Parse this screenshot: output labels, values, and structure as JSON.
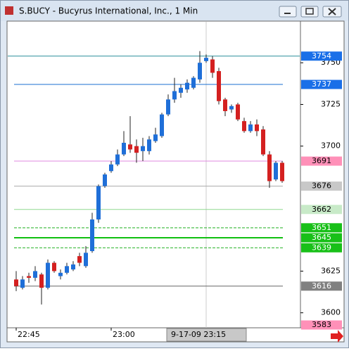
{
  "window": {
    "title": "S.BUCY - Bucyrus International, Inc., 1 Min"
  },
  "chart_data": {
    "type": "candlestick",
    "categories": [
      "22:45",
      null,
      null,
      null,
      null,
      null,
      null,
      null,
      null,
      null,
      null,
      null,
      null,
      null,
      null,
      "23:00",
      null,
      null,
      null,
      null,
      null,
      null,
      null,
      null,
      null,
      null,
      null,
      null,
      null,
      null,
      null,
      null,
      null,
      null,
      null,
      null,
      null,
      null,
      null,
      null,
      null,
      null,
      null
    ],
    "open": [
      3620,
      3615,
      3622,
      3621,
      3623,
      3615,
      3630,
      3622,
      3624,
      3626,
      3634,
      3628,
      3637,
      3656,
      3676,
      3685,
      3689,
      3695,
      3701,
      3700,
      3697,
      3697,
      3703,
      3706,
      3719,
      3728,
      3732,
      3734,
      3735,
      3740,
      3751,
      3752,
      3745,
      3728,
      3722,
      3725,
      3715,
      3709,
      3713,
      3710,
      3695,
      3680,
      3690
    ],
    "high": [
      3625,
      3622,
      3624,
      3628,
      3624,
      3632,
      3631,
      3626,
      3630,
      3631,
      3636,
      3640,
      3660,
      3677,
      3684,
      3691,
      3698,
      3709,
      3718,
      3704,
      3705,
      3706,
      3711,
      3720,
      3731,
      3741,
      3737,
      3740,
      3742,
      3757,
      3755,
      3754,
      3747,
      3729,
      3725,
      3726,
      3717,
      3715,
      3716,
      3712,
      3697,
      3691,
      3691
    ],
    "low": [
      3613,
      3614,
      3618,
      3619,
      3605,
      3614,
      3624,
      3620,
      3623,
      3625,
      3628,
      3627,
      3636,
      3654,
      3675,
      3684,
      3688,
      3694,
      3696,
      3690,
      3691,
      3695,
      3702,
      3705,
      3718,
      3726,
      3729,
      3732,
      3734,
      3738,
      3750,
      3741,
      3725,
      3718,
      3720,
      3715,
      3708,
      3708,
      3706,
      3694,
      3675,
      3679,
      3678
    ],
    "close": [
      3616,
      3620,
      3621,
      3625,
      3615,
      3630,
      3625,
      3624,
      3628,
      3629,
      3630,
      3636,
      3656,
      3676,
      3683,
      3689,
      3695,
      3702,
      3698,
      3696,
      3700,
      3704,
      3707,
      3719,
      3728,
      3733,
      3735,
      3738,
      3741,
      3750,
      3753,
      3744,
      3727,
      3721,
      3724,
      3716,
      3709,
      3713,
      3709,
      3695,
      3679,
      3690,
      3679
    ],
    "up_color": "#1f6fd8",
    "down_color": "#d42020",
    "ylim": [
      3591,
      3775
    ],
    "yticks": [
      3600,
      3625,
      3700,
      3725,
      3750
    ],
    "cursor_label": "9-17-09  23:15",
    "levels": [
      {
        "value": 3754,
        "color": "#2a8f9c",
        "badge": "#1a6fe8",
        "text_color": "#ffffff",
        "dash": false
      },
      {
        "value": 3737,
        "color": "#1a6fd0",
        "badge": "#1a6fe8",
        "text_color": "#ffffff",
        "dash": false
      },
      {
        "value": 3691,
        "color": "#e088e0",
        "badge": "#ff90b8",
        "text_color": "#000000",
        "dash": false
      },
      {
        "value": 3676,
        "color": "#aaaaaa",
        "badge": "#c8c8c8",
        "text_color": "#000000",
        "dash": false
      },
      {
        "value": 3662,
        "color": "#90d890",
        "badge": "#c8eac8",
        "text_color": "#000000",
        "dash": false
      },
      {
        "value": 3651,
        "color": "#20b020",
        "badge": "#18c018",
        "text_color": "#ffffff",
        "dash": true
      },
      {
        "value": 3645,
        "color": "#10c010",
        "badge": "#18c018",
        "text_color": "#ffffff",
        "dash": false
      },
      {
        "value": 3639,
        "color": "#20b020",
        "badge": "#18c018",
        "text_color": "#ffffff",
        "dash": true
      },
      {
        "value": 3616,
        "color": "#666666",
        "badge": "#808080",
        "text_color": "#ffffff",
        "dash": false
      },
      {
        "value": 3583,
        "color": "#ff90b8",
        "badge": "#ff90b8",
        "text_color": "#000000",
        "dash": false
      }
    ]
  }
}
